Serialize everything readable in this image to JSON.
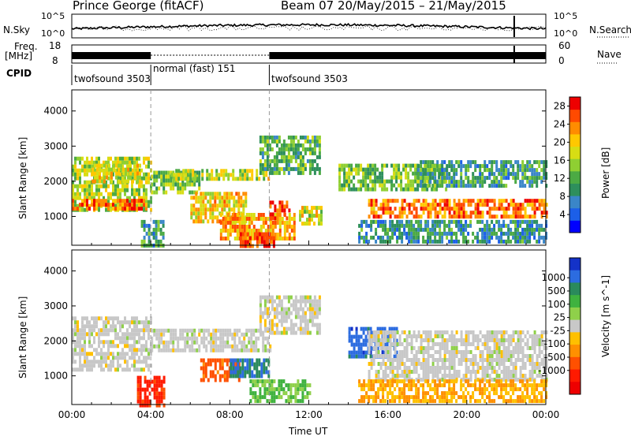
{
  "header": {
    "station": "Prince George (fitACF)",
    "beam_dates": "Beam 07  20/May/2015 – 21/May/2015"
  },
  "top_panels": {
    "nsky_label": "N.Sky",
    "nsky_ticks": [
      "10^5",
      "10^0"
    ],
    "nsearch_label": "N.Search",
    "nsearch_ticks": [
      "10^5",
      "10^0"
    ],
    "freq_label_1": "Freq.",
    "freq_label_2": "[MHz]",
    "freq_ticks": [
      "18",
      "8"
    ],
    "nave_label": "Nave",
    "nave_ticks": [
      "60",
      "0"
    ],
    "cpid_label": "CPID",
    "cpid_segments": [
      {
        "label": "twofsound 3503",
        "start_hour": 0,
        "end_hour": 4
      },
      {
        "label": "normal (fast) 151",
        "start_hour": 4,
        "end_hour": 10
      },
      {
        "label": "twofsound 3503",
        "start_hour": 10,
        "end_hour": 24
      }
    ]
  },
  "chart_data": [
    {
      "type": "heatmap",
      "title": "",
      "xlabel": "Time UT",
      "ylabel": "Slant Range [km]",
      "x_ticks": [
        "00:00",
        "04:00",
        "08:00",
        "12:00",
        "16:00",
        "20:00",
        "00:00"
      ],
      "xlim_hours": [
        0,
        24
      ],
      "y_ticks": [
        1000,
        2000,
        3000,
        4000
      ],
      "ylim": [
        180,
        4600
      ],
      "colorbar": {
        "label": "Power [dB]",
        "ticks": [
          4,
          8,
          12,
          16,
          20,
          24,
          28
        ],
        "range": [
          0,
          30
        ],
        "colors": [
          "#0000ff",
          "#1c5fe8",
          "#3a86c8",
          "#2e8f5c",
          "#4caa44",
          "#8fcf32",
          "#d7dd14",
          "#ffc800",
          "#ff8c00",
          "#ff4a00",
          "#ee0000"
        ]
      },
      "echo_bands": [
        {
          "start_hour": 0.0,
          "end_hour": 4.0,
          "range_low": 1150,
          "range_high": 2700,
          "power": 16
        },
        {
          "start_hour": 0.0,
          "end_hour": 3.8,
          "range_low": 1250,
          "range_high": 1500,
          "power": 25
        },
        {
          "start_hour": 1.0,
          "end_hour": 3.5,
          "range_low": 2000,
          "range_high": 2500,
          "power": 18
        },
        {
          "start_hour": 3.5,
          "end_hour": 4.6,
          "range_low": 200,
          "range_high": 900,
          "power": 10
        },
        {
          "start_hour": 4.0,
          "end_hour": 6.5,
          "range_low": 1700,
          "range_high": 2300,
          "power": 14
        },
        {
          "start_hour": 5.0,
          "end_hour": 10.0,
          "range_low": 2100,
          "range_high": 2350,
          "power": 17
        },
        {
          "start_hour": 6.0,
          "end_hour": 8.8,
          "range_low": 900,
          "range_high": 1700,
          "power": 20
        },
        {
          "start_hour": 7.5,
          "end_hour": 11.3,
          "range_low": 350,
          "range_high": 1100,
          "power": 22
        },
        {
          "start_hour": 8.5,
          "end_hour": 10.2,
          "range_low": 200,
          "range_high": 550,
          "power": 27
        },
        {
          "start_hour": 10.0,
          "end_hour": 11.0,
          "range_low": 950,
          "range_high": 1450,
          "power": 28
        },
        {
          "start_hour": 9.5,
          "end_hour": 12.6,
          "range_low": 2200,
          "range_high": 3300,
          "power": 12
        },
        {
          "start_hour": 11.5,
          "end_hour": 12.6,
          "range_low": 850,
          "range_high": 1300,
          "power": 18
        },
        {
          "start_hour": 13.5,
          "end_hour": 19.0,
          "range_low": 1800,
          "range_high": 2500,
          "power": 14
        },
        {
          "start_hour": 15.0,
          "end_hour": 24.0,
          "range_low": 1050,
          "range_high": 1500,
          "power": 24
        },
        {
          "start_hour": 17.5,
          "end_hour": 24.0,
          "range_low": 1900,
          "range_high": 2600,
          "power": 10
        },
        {
          "start_hour": 14.5,
          "end_hour": 24.0,
          "range_low": 300,
          "range_high": 900,
          "power": 9
        }
      ]
    },
    {
      "type": "heatmap",
      "title": "",
      "xlabel": "Time UT",
      "ylabel": "Slant Range [km]",
      "x_ticks": [
        "00:00",
        "04:00",
        "08:00",
        "12:00",
        "16:00",
        "20:00",
        "00:00"
      ],
      "xlim_hours": [
        0,
        24
      ],
      "y_ticks": [
        1000,
        2000,
        3000,
        4000
      ],
      "ylim": [
        180,
        4600
      ],
      "colorbar": {
        "label": "Velocity [m s^-1]",
        "ticks": [
          "1000",
          "500",
          "100",
          "25",
          "-25",
          "-100",
          "-500",
          "-1000"
        ],
        "colors": [
          "#1432c8",
          "#2c6ce0",
          "#2a8a5c",
          "#3fb23f",
          "#8fd04a",
          "#c8c8c8",
          "#ffc000",
          "#ff9000",
          "#ff5000",
          "#ff1a00",
          "#ee0000"
        ]
      },
      "echo_bands": [
        {
          "start_hour": 0.0,
          "end_hour": 4.0,
          "range_low": 1150,
          "range_high": 2700,
          "velocity": 0
        },
        {
          "start_hour": 3.3,
          "end_hour": 4.7,
          "range_low": 200,
          "range_high": 1000,
          "velocity": -400
        },
        {
          "start_hour": 4.0,
          "end_hour": 10.0,
          "range_low": 1700,
          "range_high": 2350,
          "velocity": 0
        },
        {
          "start_hour": 6.5,
          "end_hour": 8.5,
          "range_low": 900,
          "range_high": 1500,
          "velocity": -200
        },
        {
          "start_hour": 8.0,
          "end_hour": 10.0,
          "range_low": 1000,
          "range_high": 1500,
          "velocity": 300
        },
        {
          "start_hour": 9.0,
          "end_hour": 12.0,
          "range_low": 300,
          "range_high": 900,
          "velocity": 60
        },
        {
          "start_hour": 9.5,
          "end_hour": 12.6,
          "range_low": 2200,
          "range_high": 3300,
          "velocity": 0
        },
        {
          "start_hour": 14.0,
          "end_hour": 16.5,
          "range_low": 1500,
          "range_high": 2400,
          "velocity": 500
        },
        {
          "start_hour": 15.0,
          "end_hour": 24.0,
          "range_low": 900,
          "range_high": 2300,
          "velocity": 0
        },
        {
          "start_hour": 14.5,
          "end_hour": 24.0,
          "range_low": 300,
          "range_high": 900,
          "velocity": -60
        }
      ]
    }
  ]
}
